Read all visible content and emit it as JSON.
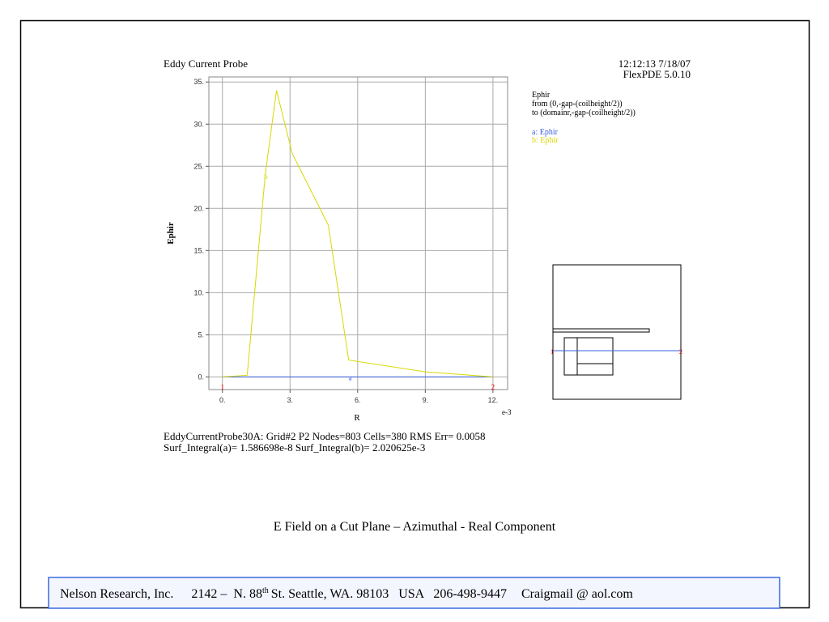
{
  "chart_data": {
    "type": "line",
    "title": "Eddy Current Probe",
    "timestamp": "12:12:13 7/18/07",
    "software": "FlexPDE 5.0.10",
    "plot_info": [
      "Ephir",
      "from (0,-gap-(coilheight/2))",
      "to (domainr,-gap-(coilheight/2))"
    ],
    "x_label": "R",
    "x_multiplier": "e-3",
    "y_label": "Ephir",
    "endpoint_labels": [
      "1",
      "2"
    ],
    "series": [
      {
        "name": "a: Ephir",
        "label": "a",
        "color": "#3a5fe0",
        "x": [
          0,
          12
        ],
        "values": [
          0,
          0
        ]
      },
      {
        "name": "b: Ephir",
        "label": "b",
        "color": "#d8d800",
        "x": [
          0,
          1.1,
          1.9,
          2.4,
          3.1,
          4.7,
          5.6,
          9,
          12
        ],
        "values": [
          0,
          0.2,
          24,
          34,
          26.5,
          18,
          2,
          0.6,
          0
        ]
      }
    ],
    "xlim": [
      -0.6,
      12.65
    ],
    "ylim": [
      -1.5,
      35.6
    ],
    "xticks": [
      {
        "value": 0,
        "label": "0."
      },
      {
        "value": 3,
        "label": "3."
      },
      {
        "value": 6,
        "label": "6."
      },
      {
        "value": 9,
        "label": "9."
      },
      {
        "value": 12,
        "label": "12."
      }
    ],
    "yticks": [
      {
        "value": 0,
        "label": "0."
      },
      {
        "value": 5,
        "label": "5."
      },
      {
        "value": 10,
        "label": "10."
      },
      {
        "value": 15,
        "label": "15."
      },
      {
        "value": 20,
        "label": "20."
      },
      {
        "value": 25,
        "label": "25."
      },
      {
        "value": 30,
        "label": "30."
      },
      {
        "value": 35,
        "label": "35."
      }
    ],
    "grid": true,
    "notes": [
      "EddyCurrentProbe30A:  Grid#2  P2  Nodes=803 Cells=380 RMS Err= 0.0058",
      "Surf_Integral(a)=  1.586698e-8 Surf_Integral(b)=  2.020625e-3"
    ]
  },
  "caption": "E Field on a Cut Plane – Azimuthal - Real Component",
  "footer": [
    "Nelson Research, Inc.",
    "2142 –  N. 88",
    "th",
    "St. Seattle, WA. 98103   USA   206-498-9447",
    "Craigmail @ aol.com"
  ]
}
